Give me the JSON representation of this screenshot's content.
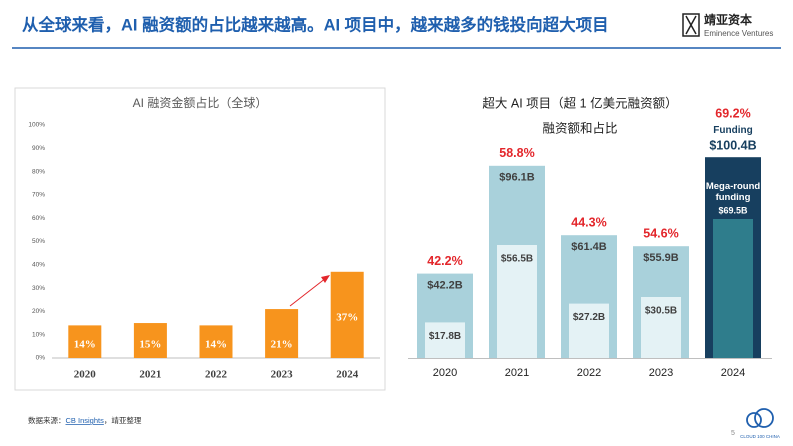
{
  "header": {
    "title": "从全球来看，AI 融资额的占比越来越高。AI 项目中，越来越多的钱投向超大项目",
    "logo_name": "靖亚资本",
    "logo_sub": "Eminence Ventures"
  },
  "chart_data": [
    {
      "type": "bar",
      "title": "AI 融资金额占比（全球）",
      "categories": [
        "2020",
        "2021",
        "2022",
        "2023",
        "2024"
      ],
      "values": [
        14,
        15,
        14,
        21,
        37
      ],
      "value_labels": [
        "14%",
        "15%",
        "14%",
        "21%",
        "37%"
      ],
      "color": "#f7941d",
      "ylim": [
        0,
        100
      ],
      "yticks": [
        {
          "value": 0,
          "label": "0%"
        },
        {
          "value": 10,
          "label": "10%"
        },
        {
          "value": 20,
          "label": "20%"
        },
        {
          "value": 30,
          "label": "30%"
        },
        {
          "value": 40,
          "label": "40%"
        },
        {
          "value": 50,
          "label": "50%"
        },
        {
          "value": 60,
          "label": "60%"
        },
        {
          "value": 70,
          "label": "70%"
        },
        {
          "value": 80,
          "label": "80%"
        },
        {
          "value": 90,
          "label": "90%"
        },
        {
          "value": 100,
          "label": "100%"
        }
      ],
      "grid": false
    },
    {
      "type": "overlap-bar",
      "title": "超大 AI 项目（超 1 亿美元融资额）",
      "subtitle": "融资额和占比",
      "categories": [
        "2020",
        "2021",
        "2022",
        "2023",
        "2024"
      ],
      "series": [
        {
          "name": "Funding",
          "colors": [
            "#a9d1db",
            "#a9d1db",
            "#a9d1db",
            "#a9d1db",
            "#173f5f"
          ],
          "values": [
            42.2,
            96.1,
            61.4,
            55.9,
            100.4
          ],
          "value_labels": [
            "$42.2B",
            "$96.1B",
            "$61.4B",
            "$55.9B",
            "$100.4B"
          ]
        },
        {
          "name": "Mega-round funding",
          "colors": [
            "#e4f2f5",
            "#e4f2f5",
            "#e4f2f5",
            "#e4f2f5",
            "#2f7d8c"
          ],
          "values": [
            17.8,
            56.5,
            27.2,
            30.5,
            69.5
          ],
          "value_labels": [
            "$17.8B",
            "$56.5B",
            "$27.2B",
            "$30.5B",
            "$69.5B"
          ]
        }
      ],
      "share": {
        "color": "#e3262b",
        "values": [
          42.2,
          58.8,
          44.3,
          54.6,
          69.2
        ],
        "value_labels": [
          "42.2%",
          "58.8%",
          "44.3%",
          "54.6%",
          "69.2%"
        ]
      }
    }
  ],
  "footer": {
    "source_prefix": "数据来源：",
    "source_link": "CB Insights",
    "source_suffix": "，靖亚整理",
    "page_number": 5,
    "badge": "CLOUD 100 CHINA"
  }
}
